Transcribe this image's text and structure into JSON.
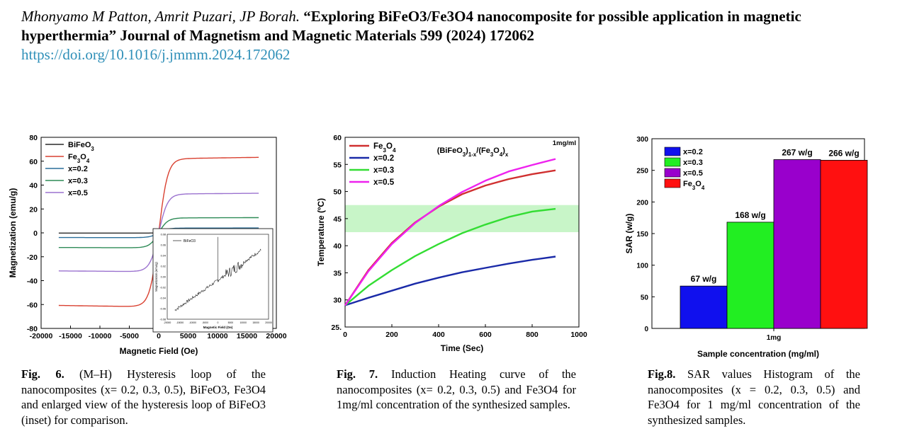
{
  "reference": {
    "authors": "Mhonyamo M Patton, Amrit Puzari, JP Borah.",
    "title": "“Exploring BiFeO3/Fe3O4 nanocomposite for possible application in magnetic hyperthermia”",
    "journal": "Journal of Magnetism and Magnetic Materials 599 (2024) 172062",
    "doi": "https://doi.org/10.1016/j.jmmm.2024.172062"
  },
  "figures": [
    {
      "label": "Fig. 6.",
      "caption": "(M–H) Hysteresis loop of the nanocomposites (x= 0.2, 0.3, 0.5), BiFeO3, Fe3O4 and enlarged view of the hysteresis loop of BiFeO3 (inset) for comparison."
    },
    {
      "label": "Fig. 7.",
      "caption": "Induction Heating curve of the nanocomposites (x= 0.2, 0.3, 0.5) and Fe3O4 for 1mg/ml concentration of the synthesized samples."
    },
    {
      "label": "Fig.8.",
      "caption": "SAR values Histogram of the nanocomposites (x = 0.2, 0.3, 0.5) and Fe3O4 for 1 mg/ml concentration of the synthesized samples."
    }
  ],
  "chart_data": [
    {
      "type": "line",
      "xlabel": "Magnetic Field (Oe)",
      "ylabel": "Magnetization (emu/g)",
      "xlim": [
        -20000,
        20000
      ],
      "ylim": [
        -80,
        80
      ],
      "xticks": [
        "-20000",
        "-15000",
        "-10000",
        "-5000",
        "0",
        "5000",
        "10000",
        "15000",
        "20000"
      ],
      "yticks": [
        "-80",
        "-60",
        "-40",
        "-20",
        "0",
        "20",
        "40",
        "60",
        "80"
      ],
      "legend_position": "top-left",
      "series": [
        {
          "name": "BiFeO3",
          "name_sub": "",
          "display": [
            "BiFeO",
            "3",
            ""
          ],
          "color": "#2a2a2a",
          "ms": 0.2,
          "hk": 1500
        },
        {
          "name": "Fe3O4",
          "display": [
            "Fe",
            "3",
            "O",
            "4"
          ],
          "color": "#d94030",
          "ms": 62,
          "hk": 1500
        },
        {
          "name": "x=0.2",
          "display": [
            "x=0.2"
          ],
          "color": "#2a6f9a",
          "ms": 4,
          "hk": 1500
        },
        {
          "name": "x=0.3",
          "display": [
            "x=0.3"
          ],
          "color": "#2e8b57",
          "ms": 12.5,
          "hk": 1500
        },
        {
          "name": "x=0.5",
          "display": [
            "x=0.5"
          ],
          "color": "#9b72cf",
          "ms": 32.5,
          "hk": 1500
        }
      ],
      "x_range_data": [
        -17000,
        17000
      ],
      "inset": {
        "legend": "BiFeO3",
        "xlabel": "Magnetic Field (Oe)",
        "ylabel": "Magnetization (emu/g)",
        "xticks": [
          "-20000",
          "-15000",
          "-10000",
          "-5000",
          "0",
          "5000",
          "10000",
          "15000",
          "20000"
        ],
        "yticks": [
          "-0.08",
          "-0.06",
          "-0.04",
          "-0.02",
          "0.00",
          "0.02",
          "0.04",
          "0.06",
          "0.08"
        ],
        "xlim": [
          -20000,
          20000
        ],
        "ylim": [
          -0.08,
          0.08
        ],
        "line": {
          "x0": -17000,
          "y0": -0.063,
          "x1": 17000,
          "y1": 0.05
        }
      }
    },
    {
      "type": "line",
      "title": "(BiFeO3)1-x/(Fe3O4)x",
      "annotation": "1mg/ml",
      "xlabel": "Time (Sec)",
      "ylabel": "Temperature (ºC)",
      "xlim": [
        0,
        1000
      ],
      "ylim": [
        25,
        60
      ],
      "xticks": [
        "0",
        "200",
        "400",
        "600",
        "800",
        "1000"
      ],
      "yticks": [
        "25.",
        "30",
        "35",
        "40",
        "45",
        "50",
        "55",
        "60"
      ],
      "band": [
        42.5,
        47.5
      ],
      "band_color": "#c8f5c8",
      "legend_position": "top-left",
      "series": [
        {
          "name": "Fe3O4",
          "display": [
            "Fe",
            "3",
            "O",
            "4"
          ],
          "color": "#d03030",
          "x": [
            0,
            100,
            200,
            300,
            400,
            500,
            600,
            700,
            800,
            900
          ],
          "y": [
            29,
            35.5,
            40.5,
            44.3,
            47.2,
            49.5,
            51.1,
            52.3,
            53.2,
            53.9
          ]
        },
        {
          "name": "x=0.2",
          "display": [
            "x=0.2"
          ],
          "color": "#1a2aa8",
          "x": [
            0,
            100,
            200,
            300,
            400,
            500,
            600,
            700,
            800,
            900
          ],
          "y": [
            29,
            30.4,
            31.7,
            33.0,
            34.1,
            35.1,
            35.9,
            36.7,
            37.4,
            38.0
          ]
        },
        {
          "name": "x=0.3",
          "display": [
            "x=0.3"
          ],
          "color": "#33dd33",
          "x": [
            0,
            100,
            200,
            300,
            400,
            500,
            600,
            700,
            800,
            900
          ],
          "y": [
            29,
            32.6,
            35.5,
            38.1,
            40.3,
            42.3,
            43.9,
            45.3,
            46.3,
            46.8
          ]
        },
        {
          "name": "x=0.5",
          "display": [
            "x=0.5"
          ],
          "color": "#ee22ee",
          "x": [
            0,
            100,
            200,
            300,
            400,
            500,
            600,
            700,
            800,
            900
          ],
          "y": [
            29,
            35.3,
            40.3,
            44.2,
            47.3,
            49.9,
            52.0,
            53.7,
            54.9,
            56.0
          ]
        }
      ]
    },
    {
      "type": "bar",
      "xlabel": "Sample concentration (mg/ml)",
      "ylabel": "SAR (w/g)",
      "category_label": "1mg",
      "ylim": [
        0,
        300
      ],
      "yticks": [
        "0",
        "50",
        "100",
        "150",
        "200",
        "250",
        "300"
      ],
      "legend_position": "top-left",
      "series": [
        {
          "name": "x=0.2",
          "display": [
            "x=0.2"
          ],
          "value": 67,
          "label": "67 w/g",
          "color": "#1010ee"
        },
        {
          "name": "x=0.3",
          "display": [
            "x=0.3"
          ],
          "value": 168,
          "label": "168 w/g",
          "color": "#22ee22"
        },
        {
          "name": "x=0.5",
          "display": [
            "x=0.5"
          ],
          "value": 267,
          "label": "267 w/g",
          "color": "#9900cc"
        },
        {
          "name": "Fe3O4",
          "display": [
            "Fe",
            "3",
            "O",
            "4"
          ],
          "value": 266,
          "label": "266 w/g",
          "color": "#ff1010"
        }
      ]
    }
  ]
}
